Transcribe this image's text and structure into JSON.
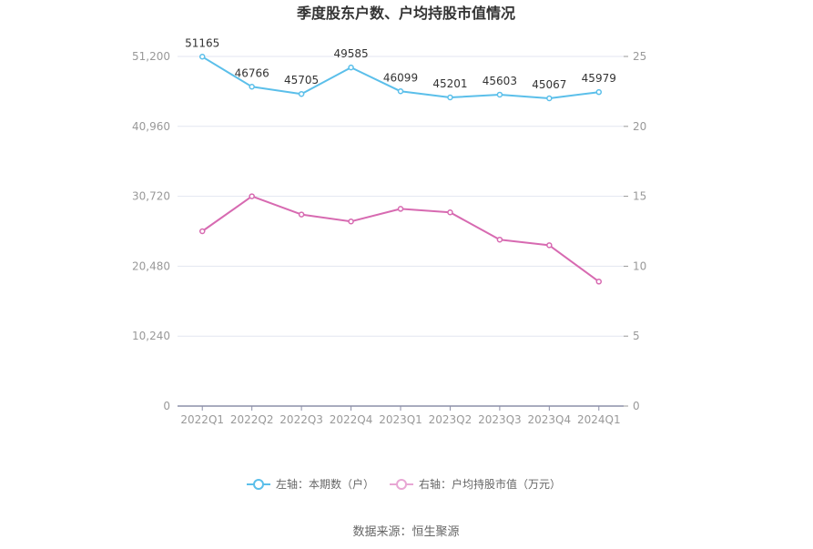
{
  "chart_data": {
    "type": "line",
    "title": "季度股东户数、户均持股市值情况",
    "categories": [
      "2022Q1",
      "2022Q2",
      "2022Q3",
      "2022Q4",
      "2023Q1",
      "2023Q2",
      "2023Q3",
      "2023Q4",
      "2024Q1"
    ],
    "left_axis": {
      "ylim": [
        0,
        51200
      ],
      "ticks": [
        "0",
        "10,240",
        "20,480",
        "30,720",
        "40,960",
        "51,200"
      ]
    },
    "right_axis": {
      "ylim": [
        0,
        25
      ],
      "ticks": [
        "0",
        "5",
        "10",
        "15",
        "20",
        "25"
      ]
    },
    "series": [
      {
        "name": "左轴：本期数（户）",
        "axis": "left",
        "color": "#5bbfea",
        "values": [
          51165,
          46766,
          45705,
          49585,
          46099,
          45201,
          45603,
          45067,
          45979
        ],
        "labels": [
          "51165",
          "46766",
          "45705",
          "49585",
          "46099",
          "45201",
          "45603",
          "45067",
          "45979"
        ]
      },
      {
        "name": "右轴：户均持股市值（万元）",
        "axis": "right",
        "color": "#d76ab1",
        "values": [
          12.5,
          15.0,
          13.7,
          13.2,
          14.1,
          13.85,
          11.9,
          11.5,
          8.9
        ]
      }
    ],
    "grid": true,
    "legend_position": "bottom"
  },
  "source": "数据来源：恒生聚源"
}
